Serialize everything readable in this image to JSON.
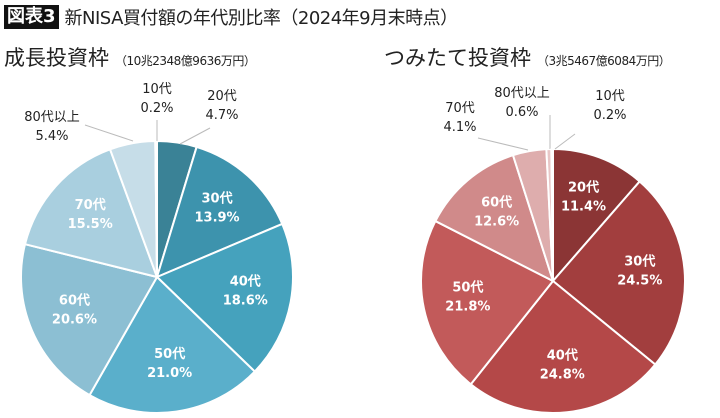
{
  "header": {
    "badge": "図表3",
    "title": "新NISA買付額の年代別比率（2024年9月末時点）"
  },
  "chart_data": [
    {
      "type": "pie",
      "title": "成長投資枠",
      "subtitle": "（10兆2348億9636万円）",
      "categories": [
        "20代",
        "30代",
        "40代",
        "50代",
        "60代",
        "70代",
        "80代以上",
        "10代"
      ],
      "values": [
        4.7,
        13.9,
        18.6,
        21.0,
        20.6,
        15.5,
        5.4,
        0.2
      ],
      "labels": [
        "4.7%",
        "13.9%",
        "18.6%",
        "21.0%",
        "20.6%",
        "15.5%",
        "5.4%",
        "0.2%"
      ],
      "colors": [
        "#3a8296",
        "#3d93ad",
        "#45a2bd",
        "#5aafcb",
        "#8cbfd3",
        "#a9cfdf",
        "#c6dde8",
        "#d5e6ee"
      ],
      "start": "12 o'clock, clockwise"
    },
    {
      "type": "pie",
      "title": "つみたて投資枠",
      "subtitle": "（3兆5467億6084万円）",
      "categories": [
        "20代",
        "30代",
        "40代",
        "50代",
        "60代",
        "70代",
        "80代以上",
        "10代"
      ],
      "values": [
        11.4,
        24.5,
        24.8,
        21.8,
        12.6,
        4.1,
        0.6,
        0.2
      ],
      "labels": [
        "11.4%",
        "24.5%",
        "24.8%",
        "21.8%",
        "12.6%",
        "4.1%",
        "0.6%",
        "0.2%"
      ],
      "colors": [
        "#8b3535",
        "#a23e3e",
        "#b44848",
        "#c25a5a",
        "#d08a8a",
        "#deadad",
        "#e8c7c7",
        "#eedada"
      ],
      "start": "12 o'clock, clockwise"
    }
  ]
}
